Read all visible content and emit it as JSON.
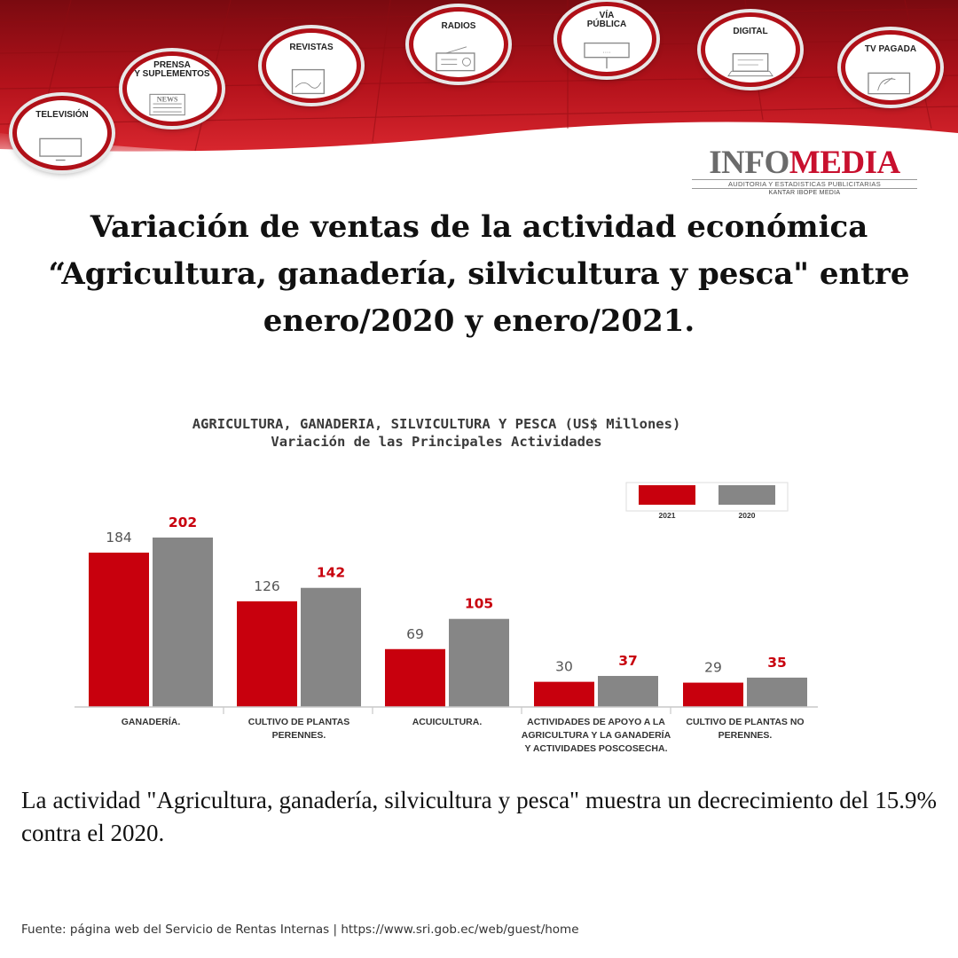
{
  "banner": {
    "badges": [
      {
        "name": "television",
        "label": "TELEVISIÓN",
        "icon": "tv-icon"
      },
      {
        "name": "prensa",
        "label": "PRENSA\nY SUPLEMENTOS",
        "icon": "newspaper-icon",
        "icon_text": "NEWS"
      },
      {
        "name": "revistas",
        "label": "REVISTAS",
        "icon": "magazine-icon"
      },
      {
        "name": "radios",
        "label": "RADIOS",
        "icon": "radio-icon"
      },
      {
        "name": "via-publica",
        "label": "VÍA\nPÚBLICA",
        "icon": "billboard-icon"
      },
      {
        "name": "digital",
        "label": "DIGITAL",
        "icon": "laptop-icon"
      },
      {
        "name": "tv-pagada",
        "label": "TV PAGADA",
        "icon": "satellite-dish-icon"
      }
    ]
  },
  "logo": {
    "part1": "INFO",
    "part2": "MEDIA",
    "subtitle": "AUDITORIA Y ESTADISTICAS PUBLICITARIAS",
    "subtitle2": "KANTAR IBOPE MEDIA"
  },
  "heading": {
    "line1": "Variación de ventas de la actividad económica",
    "line2": "“Agricultura, ganadería, silvicultura y pesca\" entre",
    "line3": "enero/2020 y enero/2021."
  },
  "colors": {
    "series_2021": "#c8000d",
    "series_2020": "#868686",
    "label_2021": "#555555",
    "label_2020": "#c8000d",
    "banner_red": "#b01018"
  },
  "chart_data": {
    "type": "bar",
    "title": "AGRICULTURA, GANADERIA, SILVICULTURA Y PESCA (US$ Millones)",
    "subtitle": "Variación de las Principales Actividades",
    "categories": [
      "GANADERÍA.",
      "CULTIVO DE PLANTAS\nPERENNES.",
      "ACUICULTURA.",
      "ACTIVIDADES DE APOYO A LA\nAGRICULTURA Y LA GANADERÍA\nY ACTIVIDADES POSCOSECHA.",
      "CULTIVO DE PLANTAS NO\nPERENNES."
    ],
    "series": [
      {
        "name": "2021",
        "values": [
          184,
          126,
          69,
          30,
          29
        ]
      },
      {
        "name": "2020",
        "values": [
          202,
          142,
          105,
          37,
          35
        ]
      }
    ],
    "ylim": [
      0,
      202
    ],
    "legend_position": "top-right",
    "grid": false
  },
  "description": "La actividad \"Agricultura, ganadería, silvicultura y pesca\" muestra un decrecimiento del 15.9% contra el 2020.",
  "source": "Fuente: página web del Servicio de Rentas Internas | https://www.sri.gob.ec/web/guest/home"
}
